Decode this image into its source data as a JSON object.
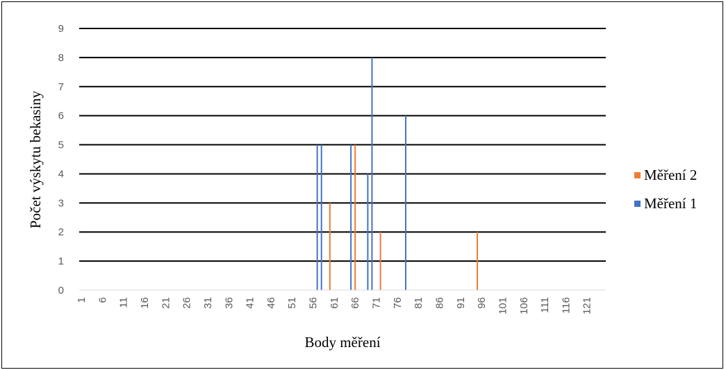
{
  "chart_data": {
    "type": "bar",
    "title": "",
    "xlabel": "Body měření",
    "ylabel": "Počet výskytu bekasiny",
    "x_range": [
      1,
      125
    ],
    "x_tick_labels": [
      "1",
      "6",
      "11",
      "16",
      "21",
      "26",
      "31",
      "36",
      "41",
      "46",
      "51",
      "56",
      "61",
      "66",
      "71",
      "76",
      "81",
      "86",
      "91",
      "96",
      "101",
      "106",
      "111",
      "116",
      "121"
    ],
    "y_ticks": [
      "0",
      "1",
      "2",
      "3",
      "4",
      "5",
      "6",
      "7",
      "8",
      "9"
    ],
    "ylim": [
      0,
      9
    ],
    "grid": true,
    "legend_position": "right",
    "series": [
      {
        "name": "Měření 1",
        "color": "#4472C4",
        "points": [
          {
            "x": 57,
            "y": 5
          },
          {
            "x": 58,
            "y": 5
          },
          {
            "x": 65,
            "y": 5
          },
          {
            "x": 69,
            "y": 4
          },
          {
            "x": 70,
            "y": 8
          },
          {
            "x": 78,
            "y": 6
          }
        ]
      },
      {
        "name": "Měření 2",
        "color": "#ED7D31",
        "points": [
          {
            "x": 60,
            "y": 3
          },
          {
            "x": 66,
            "y": 5
          },
          {
            "x": 72,
            "y": 2
          },
          {
            "x": 95,
            "y": 2
          }
        ]
      }
    ]
  }
}
